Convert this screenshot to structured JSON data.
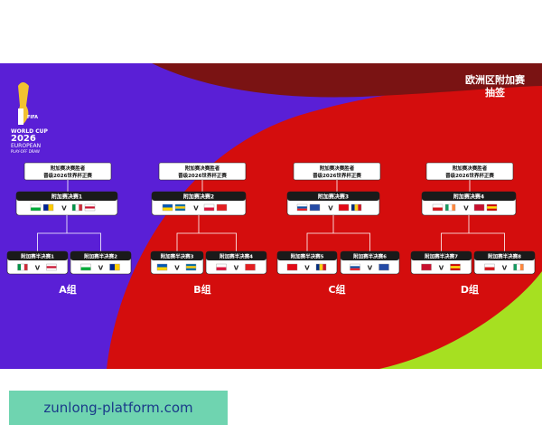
{
  "logo": {
    "line1": "WORLD CUP",
    "line2": "2026",
    "line3": "EUROPEAN",
    "line4": "PLAY-OFF DRAW",
    "fifa": "FIFA"
  },
  "title": {
    "line1": "欧洲区附加赛",
    "line2": "抽签"
  },
  "versus": "V",
  "groups": [
    {
      "label": "A组",
      "winner": [
        "附加赛决赛胜者",
        "晋级2026世界杯正赛"
      ],
      "final": "附加赛决赛1",
      "semis": [
        "附加赛半决赛1",
        "附加赛半决赛2"
      ]
    },
    {
      "label": "B组",
      "winner": [
        "附加赛决赛胜者",
        "晋级2026世界杯正赛"
      ],
      "final": "附加赛决赛2",
      "semis": [
        "附加赛半决赛3",
        "附加赛半决赛4"
      ]
    },
    {
      "label": "C组",
      "winner": [
        "附加赛决赛胜者",
        "晋级2026世界杯正赛"
      ],
      "final": "附加赛决赛3",
      "semis": [
        "附加赛半决赛5",
        "附加赛半决赛6"
      ]
    },
    {
      "label": "D组",
      "winner": [
        "附加赛决赛胜者",
        "晋级2026世界杯正赛"
      ],
      "final": "附加赛决赛4",
      "semis": [
        "附加赛半决赛7",
        "附加赛半决赛8"
      ]
    }
  ],
  "footer": "zunlong-platform.com"
}
